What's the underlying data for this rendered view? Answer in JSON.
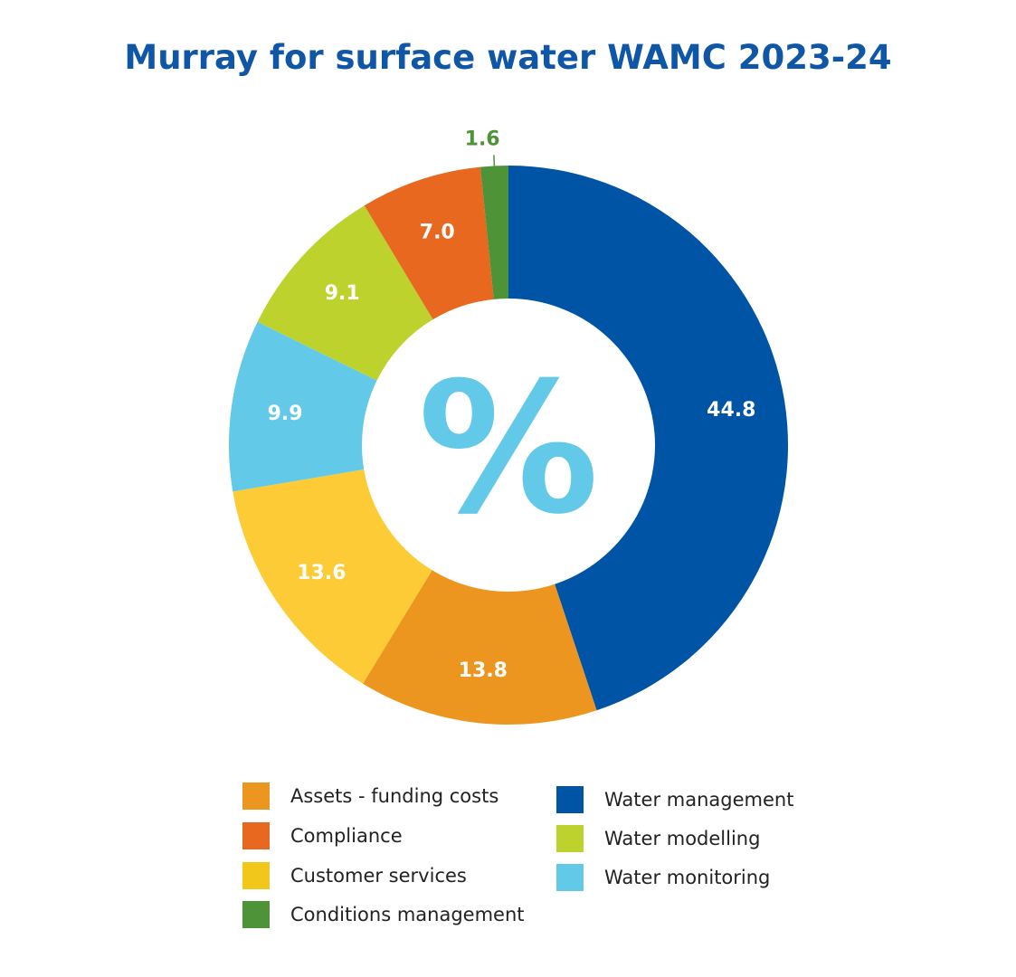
{
  "chart_data": {
    "type": "pie",
    "title": "Murray for surface water WAMC 2023-24",
    "center_symbol": "%",
    "slices": [
      {
        "name": "Water management",
        "value": 44.8,
        "label": "44.8",
        "color": "#0054a6"
      },
      {
        "name": "Assets - funding costs",
        "value": 13.8,
        "label": "13.8",
        "color": "#ec961f"
      },
      {
        "name": "Customer services",
        "value": 13.6,
        "label": "13.6",
        "color": "#fdcb36"
      },
      {
        "name": "Water monitoring",
        "value": 9.9,
        "label": "9.9",
        "color": "#63c9e9"
      },
      {
        "name": "Water modelling",
        "value": 9.1,
        "label": "9.1",
        "color": "#bed22d"
      },
      {
        "name": "Compliance",
        "value": 7.0,
        "label": "7.0",
        "color": "#e8681f"
      },
      {
        "name": "Conditions management",
        "value": 1.6,
        "label": "1.6",
        "color": "#4e9338"
      }
    ],
    "legend": [
      {
        "label": "Assets - funding costs",
        "color": "#ec961f"
      },
      {
        "label": "Compliance",
        "color": "#e8681f"
      },
      {
        "label": "Customer services",
        "color": "#f2c71b"
      },
      {
        "label": "Conditions management",
        "color": "#4e9338"
      },
      {
        "label": "Water management",
        "color": "#0054a6"
      },
      {
        "label": "Water modelling",
        "color": "#bed22d"
      },
      {
        "label": "Water monitoring",
        "color": "#63c9e9"
      }
    ],
    "legend_placement": "bottom",
    "label_color": "#ffffff",
    "small_label_color": "#4e9338",
    "center_color": "#63c9e9"
  }
}
